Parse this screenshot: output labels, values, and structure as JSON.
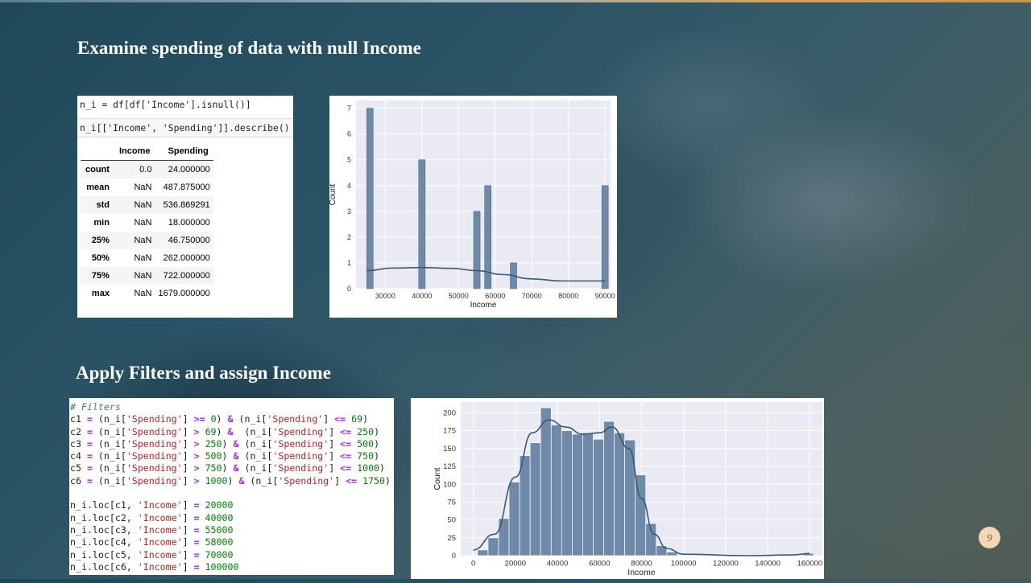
{
  "slide": {
    "title1": "Examine spending of data with null Income",
    "title2": "Apply Filters and assign Income",
    "page_number": "9"
  },
  "notebook1": {
    "cell1": "n_i = df[df['Income'].isnull()]",
    "cell2": "n_i[['Income', 'Spending']].describe()",
    "table": {
      "columns": [
        "",
        "Income",
        "Spending"
      ],
      "rows": [
        [
          "count",
          "0.0",
          "24.000000"
        ],
        [
          "mean",
          "NaN",
          "487.875000"
        ],
        [
          "std",
          "NaN",
          "536.869291"
        ],
        [
          "min",
          "NaN",
          "18.000000"
        ],
        [
          "25%",
          "NaN",
          "46.750000"
        ],
        [
          "50%",
          "NaN",
          "262.000000"
        ],
        [
          "75%",
          "NaN",
          "722.000000"
        ],
        [
          "max",
          "NaN",
          "1679.000000"
        ]
      ]
    }
  },
  "notebook2": {
    "lines": [
      "# Filters",
      "c1 = (n_i['Spending'] >= 0) & (n_i['Spending'] <= 69)",
      "c2 = (n_i['Spending'] > 69) &  (n_i['Spending'] <= 250)",
      "c3 = (n_i['Spending'] > 250) & (n_i['Spending'] <= 500)",
      "c4 = (n_i['Spending'] > 500) & (n_i['Spending'] <= 750)",
      "c5 = (n_i['Spending'] > 750) & (n_i['Spending'] <= 1000)",
      "c6 = (n_i['Spending'] > 1000) & (n_i['Spending'] <= 1750)",
      "",
      "n_i.loc[c1, 'Income'] = 20000",
      "n_i.loc[c2, 'Income'] = 40000",
      "n_i.loc[c3, 'Income'] = 55000",
      "n_i.loc[c4, 'Income'] = 58000",
      "n_i.loc[c5, 'Income'] = 70000",
      "n_i.loc[c6, 'Income'] = 100000"
    ]
  },
  "chart_data": [
    {
      "type": "bar",
      "xlabel": "Income",
      "ylabel": "Count",
      "xlim": [
        22000,
        91500
      ],
      "ylim": [
        0,
        7.3
      ],
      "xticks": [
        30000,
        40000,
        50000,
        60000,
        70000,
        80000,
        90000
      ],
      "yticks": [
        0,
        1,
        2,
        3,
        4,
        5,
        6,
        7
      ],
      "bars": [
        {
          "x": 25800,
          "value": 7
        },
        {
          "x": 40000,
          "value": 5
        },
        {
          "x": 55000,
          "value": 3
        },
        {
          "x": 58000,
          "value": 4
        },
        {
          "x": 65000,
          "value": 1
        },
        {
          "x": 90000,
          "value": 4
        }
      ],
      "kde": [
        [
          25000,
          0.7
        ],
        [
          32000,
          0.8
        ],
        [
          40000,
          0.82
        ],
        [
          48000,
          0.79
        ],
        [
          55000,
          0.7
        ],
        [
          62000,
          0.55
        ],
        [
          70000,
          0.38
        ],
        [
          78000,
          0.3
        ],
        [
          90000,
          0.3
        ]
      ],
      "grid": true,
      "colors": {
        "bar": "#6f8aa8",
        "line": "#34597a",
        "background": "#eaeaf2"
      }
    },
    {
      "type": "bar",
      "xlabel": "Income",
      "ylabel": "Count",
      "xlim": [
        -6000,
        166000
      ],
      "ylim": [
        0,
        215
      ],
      "xticks": [
        0,
        20000,
        40000,
        60000,
        80000,
        100000,
        120000,
        140000,
        160000
      ],
      "yticks": [
        0,
        25,
        50,
        75,
        100,
        125,
        150,
        175,
        200
      ],
      "bin_start": 2000,
      "bin_width": 5000,
      "values": [
        8,
        25,
        52,
        103,
        140,
        158,
        207,
        183,
        175,
        170,
        172,
        163,
        188,
        172,
        162,
        113,
        45,
        14,
        5,
        0,
        0,
        0,
        0,
        0,
        0,
        0,
        0,
        0,
        0,
        0,
        0,
        3
      ],
      "kde": [
        [
          0,
          8
        ],
        [
          10000,
          30
        ],
        [
          20000,
          110
        ],
        [
          28000,
          172
        ],
        [
          36000,
          190
        ],
        [
          44000,
          180
        ],
        [
          52000,
          170
        ],
        [
          60000,
          172
        ],
        [
          66000,
          180
        ],
        [
          74000,
          150
        ],
        [
          80000,
          80
        ],
        [
          86000,
          30
        ],
        [
          92000,
          10
        ],
        [
          100000,
          2
        ],
        [
          130000,
          0
        ],
        [
          152000,
          1
        ],
        [
          160000,
          3
        ]
      ],
      "grid": true,
      "colors": {
        "bar": "#6f8aa8",
        "line": "#34597a",
        "background": "#eaeaf2"
      }
    }
  ]
}
